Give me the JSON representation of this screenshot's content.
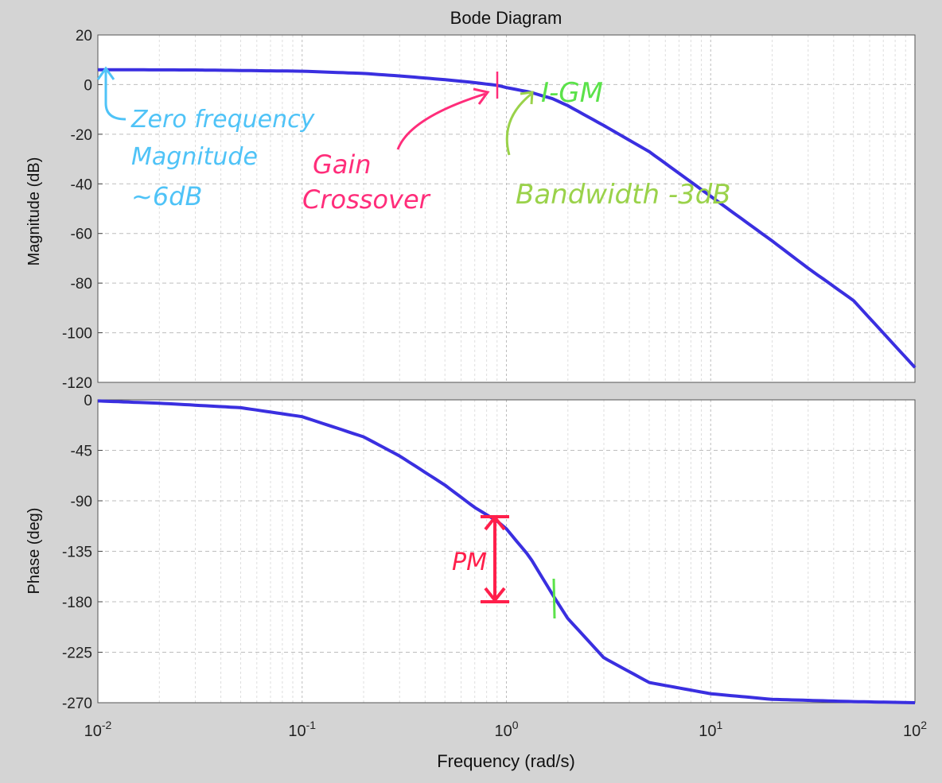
{
  "chart_data": [
    {
      "type": "line",
      "panel": "magnitude",
      "title": "Bode Diagram",
      "ylabel": "Magnitude (dB)",
      "xscale": "log",
      "xlim": [
        0.01,
        100
      ],
      "ylim": [
        -120,
        20
      ],
      "yticks": [
        "20",
        "0",
        "-20",
        "-40",
        "-60",
        "-80",
        "-100",
        "-120"
      ],
      "grid": true,
      "series": [
        {
          "color": "#3a2fe0",
          "x": [
            0.01,
            0.03,
            0.1,
            0.2,
            0.3,
            0.5,
            0.7,
            0.9,
            1.0,
            1.3,
            1.7,
            2.0,
            3.0,
            5.0,
            10,
            20,
            30,
            50,
            100
          ],
          "y": [
            6,
            5.9,
            5.4,
            4.5,
            3.5,
            2.0,
            0.8,
            -0.3,
            -1.2,
            -3.0,
            -5.8,
            -8.5,
            -16.5,
            -27,
            -45,
            -63,
            -74,
            -87,
            -114
          ]
        }
      ],
      "annotations": {
        "zero_freq": [
          "Zero frequency",
          "Magnitude",
          "~6dB"
        ],
        "gain_crossover": [
          "Gain",
          "Crossover"
        ],
        "gm": "I-GM",
        "bandwidth": "Bandwidth -3dB"
      }
    },
    {
      "type": "line",
      "panel": "phase",
      "ylabel": "Phase (deg)",
      "xlabel": "Frequency  (rad/s)",
      "xscale": "log",
      "xlim": [
        0.01,
        100
      ],
      "ylim": [
        -270,
        0
      ],
      "yticks": [
        "0",
        "-45",
        "-90",
        "-135",
        "-180",
        "-225",
        "-270"
      ],
      "xticks": [
        {
          "base": "10",
          "exp": "-2"
        },
        {
          "base": "10",
          "exp": "-1"
        },
        {
          "base": "10",
          "exp": "0"
        },
        {
          "base": "10",
          "exp": "1"
        },
        {
          "base": "10",
          "exp": "2"
        }
      ],
      "grid": true,
      "series": [
        {
          "color": "#3a2fe0",
          "x": [
            0.01,
            0.02,
            0.05,
            0.1,
            0.2,
            0.3,
            0.5,
            0.7,
            0.9,
            1.0,
            1.3,
            1.7,
            2.0,
            3.0,
            5.0,
            10,
            20,
            50,
            100
          ],
          "y": [
            -1,
            -3,
            -7,
            -15,
            -33,
            -50,
            -76,
            -96,
            -108,
            -115,
            -140,
            -175,
            -195,
            -230,
            -252,
            -262,
            -267,
            -269,
            -270
          ]
        }
      ],
      "annotations": {
        "phase_margin": "PM"
      }
    }
  ]
}
